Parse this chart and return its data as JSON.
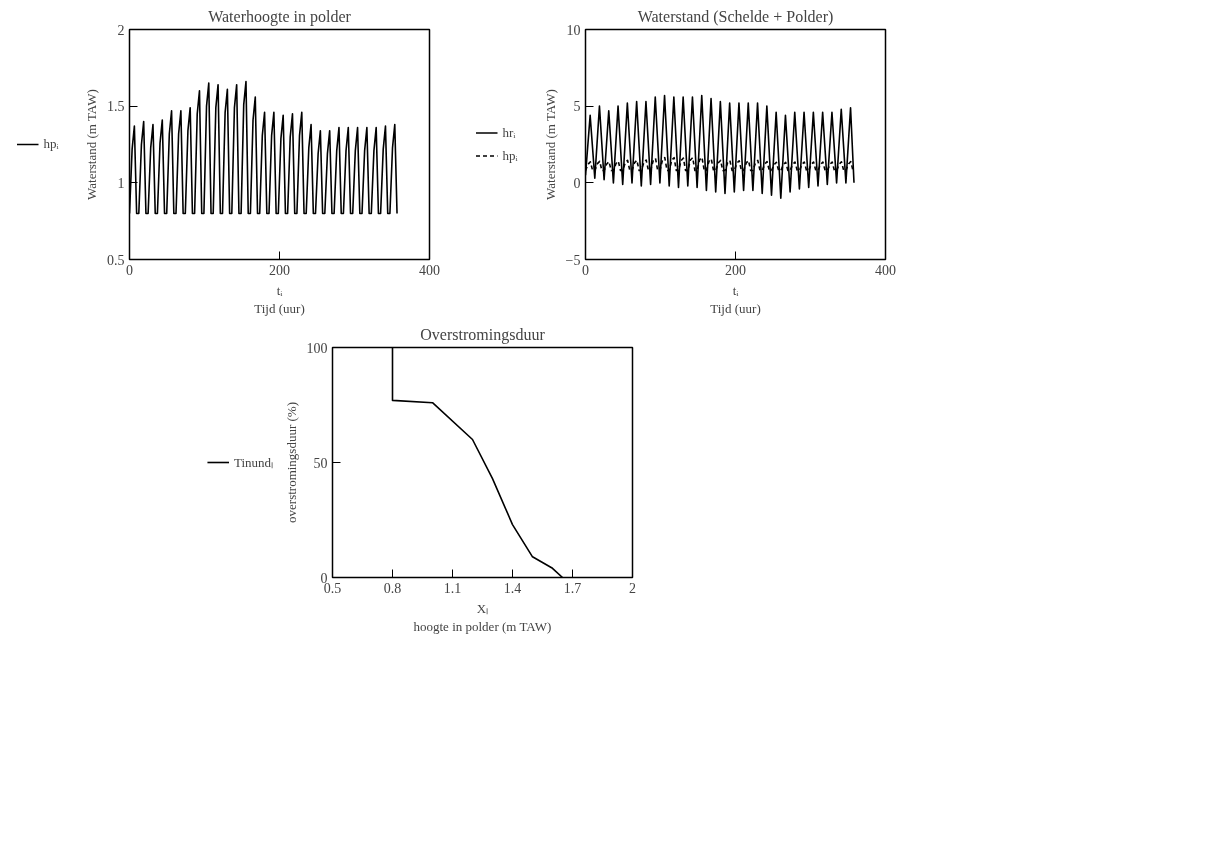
{
  "chart_data": [
    {
      "type": "line",
      "title": "Waterhoogte in polder",
      "ylabel": "Waterstand (m TAW)",
      "xlabel": "tᵢ\nTijd (uur)",
      "xlim": [
        0,
        400
      ],
      "ylim": [
        0.5,
        2
      ],
      "xticks": [
        0,
        200,
        400
      ],
      "yticks": [
        0.5,
        1,
        1.5,
        2
      ],
      "grid": false,
      "legend": "left",
      "marker": "none",
      "series": [
        {
          "name": "hpᵢ",
          "color": "#000000",
          "line_style": "solid",
          "x": [
            0,
            3.5,
            6.5,
            9.5,
            12.4,
            15.9,
            18.9,
            21.9,
            24.8,
            28.3,
            31.3,
            34.3,
            37.2,
            40.7,
            43.7,
            46.7,
            49.6,
            53.1,
            56.1,
            59.1,
            62,
            65.5,
            68.5,
            71.5,
            74.4,
            77.9,
            80.9,
            83.9,
            86.8,
            90.3,
            93.3,
            96.3,
            99.2,
            102.7,
            105.7,
            108.7,
            111.6,
            115.1,
            118.1,
            121.1,
            124,
            127.5,
            130.5,
            133.5,
            136.4,
            139.9,
            142.9,
            145.9,
            148.8,
            152.3,
            155.3,
            158.3,
            161.2,
            164.7,
            167.7,
            170.7,
            173.6,
            177.1,
            180.1,
            183.1,
            186,
            189.5,
            192.5,
            195.5,
            198.4,
            201.9,
            204.9,
            207.9,
            210.8,
            214.3,
            217.3,
            220.3,
            223.2,
            226.7,
            229.7,
            232.7,
            235.6,
            239.1,
            242.1,
            245.1,
            248,
            251.5,
            254.5,
            257.5,
            260.4,
            263.9,
            266.9,
            269.9,
            272.8,
            276.3,
            279.3,
            282.3,
            285.2,
            288.7,
            291.7,
            294.7,
            297.6,
            301.1,
            304.1,
            307.1,
            310,
            313.5,
            316.5,
            319.5,
            322.4,
            325.9,
            328.9,
            331.9,
            334.8,
            338.3,
            341.3,
            344.3,
            347.2,
            350.7,
            353.7,
            356.7
          ],
          "values": [
            0.8,
            1.22,
            1.37,
            0.8,
            0.8,
            1.25,
            1.4,
            0.8,
            0.8,
            1.23,
            1.38,
            0.8,
            0.8,
            1.26,
            1.41,
            0.8,
            0.8,
            1.32,
            1.47,
            0.8,
            0.8,
            1.32,
            1.47,
            0.8,
            0.8,
            1.34,
            1.49,
            0.8,
            0.8,
            1.45,
            1.6,
            0.8,
            0.8,
            1.5,
            1.65,
            0.8,
            0.8,
            1.49,
            1.64,
            0.8,
            0.8,
            1.46,
            1.61,
            0.8,
            0.8,
            1.49,
            1.64,
            0.8,
            0.8,
            1.51,
            1.66,
            0.8,
            0.8,
            1.41,
            1.56,
            0.8,
            0.8,
            1.31,
            1.46,
            0.8,
            0.8,
            1.31,
            1.46,
            0.8,
            0.8,
            1.29,
            1.44,
            0.8,
            0.8,
            1.3,
            1.45,
            0.8,
            0.8,
            1.31,
            1.46,
            0.8,
            0.8,
            1.23,
            1.38,
            0.8,
            0.8,
            1.19,
            1.34,
            0.8,
            0.8,
            1.19,
            1.34,
            0.8,
            0.8,
            1.21,
            1.36,
            0.8,
            0.8,
            1.21,
            1.36,
            0.8,
            0.8,
            1.21,
            1.36,
            0.8,
            0.8,
            1.21,
            1.36,
            0.8,
            0.8,
            1.21,
            1.36,
            0.8,
            0.8,
            1.22,
            1.37,
            0.8,
            0.8,
            1.23,
            1.38,
            0.8
          ]
        }
      ]
    },
    {
      "type": "line",
      "title": "Waterstand (Schelde + Polder)",
      "ylabel": "Waterstand (m TAW)",
      "xlabel": "tᵢ\nTijd (uur)",
      "xlim": [
        0,
        400
      ],
      "ylim": [
        -5,
        10
      ],
      "xticks": [
        0,
        200,
        400
      ],
      "yticks": [
        {
          "value": -5,
          "label": "−5"
        },
        0,
        5,
        10
      ],
      "grid": false,
      "legend": "left",
      "marker": "none",
      "series": [
        {
          "name": "hrᵢ",
          "color": "#000000",
          "line_style": "solid",
          "x": [
            0,
            6.2,
            12.4,
            18.6,
            24.8,
            31,
            37.2,
            43.4,
            49.6,
            55.8,
            62,
            68.2,
            74.4,
            80.6,
            86.8,
            93,
            99.2,
            105.4,
            111.6,
            117.8,
            124,
            130.2,
            136.4,
            142.6,
            148.8,
            155,
            161.2,
            167.4,
            173.6,
            179.8,
            186,
            192.2,
            198.4,
            204.6,
            210.8,
            217,
            223.2,
            229.4,
            235.6,
            241.8,
            248,
            254.2,
            260.4,
            266.6,
            272.8,
            279,
            285.2,
            291.4,
            297.6,
            303.8,
            310,
            316.2,
            322.4,
            328.6,
            334.8,
            341,
            347.2,
            353.4,
            358
          ],
          "values": [
            0.5,
            4.4,
            0.3,
            5.0,
            0.2,
            4.7,
            0.0,
            5.0,
            -0.1,
            5.2,
            0.0,
            5.3,
            -0.2,
            5.3,
            -0.1,
            5.6,
            0.0,
            5.7,
            -0.2,
            5.6,
            -0.3,
            5.6,
            -0.2,
            5.6,
            -0.3,
            5.7,
            -0.5,
            5.5,
            -0.6,
            5.3,
            -0.7,
            5.2,
            -0.6,
            5.2,
            -0.5,
            5.2,
            -0.5,
            5.2,
            -0.7,
            5.0,
            -0.8,
            4.6,
            -1.0,
            4.4,
            -0.6,
            4.6,
            -0.4,
            4.6,
            -0.3,
            4.6,
            -0.2,
            4.6,
            -0.1,
            4.6,
            0.0,
            4.8,
            0.0,
            4.9,
            0.0
          ]
        },
        {
          "name": "hpᵢ",
          "color": "#000000",
          "line_style": "dashed",
          "x": [
            0,
            3.5,
            6.5,
            9.5,
            12.4,
            15.9,
            18.9,
            21.9,
            24.8,
            28.3,
            31.3,
            34.3,
            37.2,
            40.7,
            43.7,
            46.7,
            49.6,
            53.1,
            56.1,
            59.1,
            62,
            65.5,
            68.5,
            71.5,
            74.4,
            77.9,
            80.9,
            83.9,
            86.8,
            90.3,
            93.3,
            96.3,
            99.2,
            102.7,
            105.7,
            108.7,
            111.6,
            115.1,
            118.1,
            121.1,
            124,
            127.5,
            130.5,
            133.5,
            136.4,
            139.9,
            142.9,
            145.9,
            148.8,
            152.3,
            155.3,
            158.3,
            161.2,
            164.7,
            167.7,
            170.7,
            173.6,
            177.1,
            180.1,
            183.1,
            186,
            189.5,
            192.5,
            195.5,
            198.4,
            201.9,
            204.9,
            207.9,
            210.8,
            214.3,
            217.3,
            220.3,
            223.2,
            226.7,
            229.7,
            232.7,
            235.6,
            239.1,
            242.1,
            245.1,
            248,
            251.5,
            254.5,
            257.5,
            260.4,
            263.9,
            266.9,
            269.9,
            272.8,
            276.3,
            279.3,
            282.3,
            285.2,
            288.7,
            291.7,
            294.7,
            297.6,
            301.1,
            304.1,
            307.1,
            310,
            313.5,
            316.5,
            319.5,
            322.4,
            325.9,
            328.9,
            331.9,
            334.8,
            338.3,
            341.3,
            344.3,
            347.2,
            350.7,
            353.7,
            356.7
          ],
          "values": [
            0.8,
            1.22,
            1.37,
            0.8,
            0.8,
            1.25,
            1.4,
            0.8,
            0.8,
            1.23,
            1.38,
            0.8,
            0.8,
            1.26,
            1.41,
            0.8,
            0.8,
            1.32,
            1.47,
            0.8,
            0.8,
            1.32,
            1.47,
            0.8,
            0.8,
            1.34,
            1.49,
            0.8,
            0.8,
            1.45,
            1.6,
            0.8,
            0.8,
            1.5,
            1.65,
            0.8,
            0.8,
            1.49,
            1.64,
            0.8,
            0.8,
            1.46,
            1.61,
            0.8,
            0.8,
            1.49,
            1.64,
            0.8,
            0.8,
            1.51,
            1.66,
            0.8,
            0.8,
            1.41,
            1.56,
            0.8,
            0.8,
            1.31,
            1.46,
            0.8,
            0.8,
            1.31,
            1.46,
            0.8,
            0.8,
            1.29,
            1.44,
            0.8,
            0.8,
            1.3,
            1.45,
            0.8,
            0.8,
            1.31,
            1.46,
            0.8,
            0.8,
            1.23,
            1.38,
            0.8,
            0.8,
            1.19,
            1.34,
            0.8,
            0.8,
            1.19,
            1.34,
            0.8,
            0.8,
            1.21,
            1.36,
            0.8,
            0.8,
            1.21,
            1.36,
            0.8,
            0.8,
            1.21,
            1.36,
            0.8,
            0.8,
            1.21,
            1.36,
            0.8,
            0.8,
            1.21,
            1.36,
            0.8,
            0.8,
            1.22,
            1.37,
            0.8,
            0.8,
            1.23,
            1.38,
            0.8
          ]
        }
      ]
    },
    {
      "type": "line",
      "title": "Overstromingsduur",
      "ylabel": "overstromingsduur (%)",
      "xlabel": "Xₗ\nhoogte in polder (m TAW)",
      "xlim": [
        0.5,
        2
      ],
      "ylim": [
        0,
        100
      ],
      "xticks": [
        0.5,
        0.8,
        1.1,
        1.4,
        1.7,
        2
      ],
      "yticks": [
        0,
        50,
        100
      ],
      "grid": false,
      "legend": "left",
      "marker": "none",
      "series": [
        {
          "name": "Tinundₗ",
          "color": "#000000",
          "line_style": "solid",
          "x": [
            0.8,
            0.8,
            1.0,
            1.2,
            1.3,
            1.4,
            1.5,
            1.6,
            1.65
          ],
          "values": [
            100,
            77,
            76,
            60,
            43,
            23,
            9,
            4,
            0
          ]
        }
      ]
    }
  ]
}
